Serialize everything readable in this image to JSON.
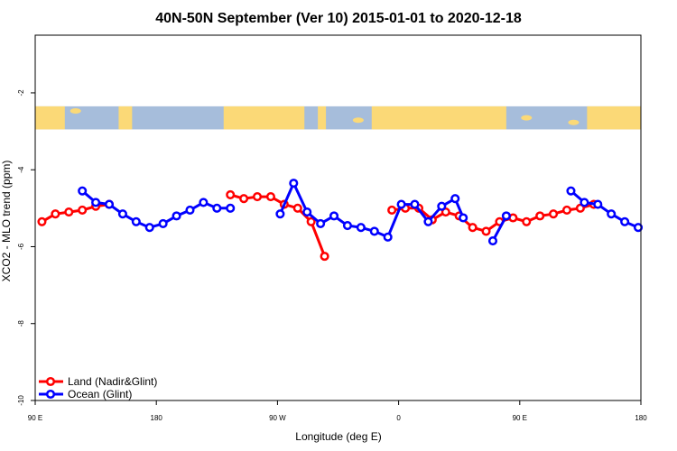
{
  "chart_data": {
    "type": "line",
    "title": "40N-50N September (Ver 10)   2015-01-01 to 2020-12-18",
    "xlabel": "Longitude (deg E)",
    "ylabel": "XCO2 - MLO trend (ppm)",
    "xlim": [
      90,
      540
    ],
    "ylim": [
      -10,
      -0.5
    ],
    "x_ticks": [
      {
        "value": 90,
        "label": "90 E"
      },
      {
        "value": 180,
        "label": "180"
      },
      {
        "value": 270,
        "label": "90 W"
      },
      {
        "value": 360,
        "label": "0"
      },
      {
        "value": 450,
        "label": "90 E"
      },
      {
        "value": 540,
        "label": "180"
      }
    ],
    "y_ticks": [
      {
        "value": -2,
        "label": "-2"
      },
      {
        "value": -4,
        "label": "-4"
      },
      {
        "value": -6,
        "label": "-6"
      },
      {
        "value": -8,
        "label": "-8"
      },
      {
        "value": -10,
        "label": "-10"
      }
    ],
    "legend_position": "bottom-left",
    "map_strip": {
      "y_top": -2.35,
      "y_bottom": -2.95,
      "land_color": "#fbd977",
      "ocean_color": "#a6bddb"
    },
    "series": [
      {
        "name": "Land (Nadir&Glint)",
        "color": "#ff0000",
        "segments": [
          [
            [
              95,
              -5.35
            ],
            [
              105,
              -5.15
            ],
            [
              115,
              -5.1
            ],
            [
              125,
              -5.05
            ],
            [
              135,
              -4.95
            ],
            [
              145,
              -4.9
            ]
          ],
          [
            [
              235,
              -4.65
            ],
            [
              245,
              -4.75
            ],
            [
              255,
              -4.7
            ],
            [
              265,
              -4.7
            ],
            [
              275,
              -4.9
            ],
            [
              285,
              -5.0
            ],
            [
              295,
              -5.35
            ],
            [
              305,
              -6.25
            ]
          ],
          [
            [
              355,
              -5.05
            ],
            [
              365,
              -5.0
            ],
            [
              375,
              -5.0
            ],
            [
              385,
              -5.3
            ],
            [
              395,
              -5.1
            ],
            [
              405,
              -5.2
            ],
            [
              415,
              -5.5
            ],
            [
              425,
              -5.6
            ],
            [
              435,
              -5.35
            ],
            [
              445,
              -5.25
            ],
            [
              455,
              -5.35
            ],
            [
              465,
              -5.2
            ],
            [
              475,
              -5.15
            ],
            [
              485,
              -5.05
            ],
            [
              495,
              -5.0
            ],
            [
              505,
              -4.9
            ]
          ]
        ]
      },
      {
        "name": "Ocean (Glint)",
        "color": "#0000ff",
        "segments": [
          [
            [
              125,
              -4.55
            ],
            [
              135,
              -4.85
            ],
            [
              145,
              -4.9
            ],
            [
              155,
              -5.15
            ],
            [
              165,
              -5.35
            ],
            [
              175,
              -5.5
            ],
            [
              185,
              -5.4
            ],
            [
              195,
              -5.2
            ],
            [
              205,
              -5.05
            ],
            [
              215,
              -4.85
            ],
            [
              225,
              -5.0
            ],
            [
              235,
              -5.0
            ]
          ],
          [
            [
              272,
              -5.15
            ],
            [
              282,
              -4.35
            ],
            [
              292,
              -5.1
            ],
            [
              302,
              -5.4
            ],
            [
              312,
              -5.2
            ],
            [
              322,
              -5.45
            ],
            [
              332,
              -5.5
            ],
            [
              342,
              -5.6
            ],
            [
              352,
              -5.75
            ],
            [
              362,
              -4.9
            ],
            [
              372,
              -4.9
            ],
            [
              382,
              -5.35
            ],
            [
              392,
              -4.95
            ],
            [
              402,
              -4.75
            ],
            [
              408,
              -5.25
            ]
          ],
          [
            [
              430,
              -5.85
            ],
            [
              440,
              -5.2
            ]
          ],
          [
            [
              488,
              -4.55
            ],
            [
              498,
              -4.85
            ],
            [
              508,
              -4.9
            ],
            [
              518,
              -5.15
            ],
            [
              528,
              -5.35
            ],
            [
              538,
              -5.5
            ]
          ]
        ]
      }
    ]
  }
}
